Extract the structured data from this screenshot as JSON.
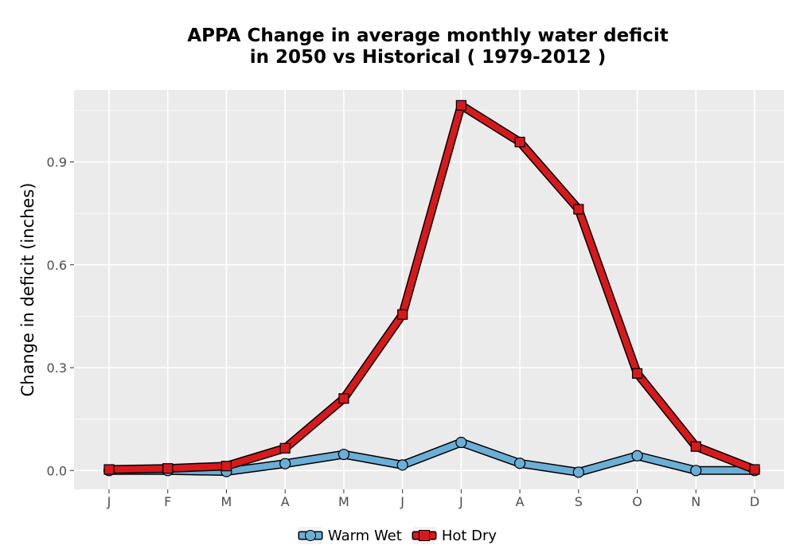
{
  "chart_data": {
    "type": "line",
    "title_lines": [
      "APPA  Change in average monthly water deficit",
      "in 2050 vs Historical ( 1979-2012 )"
    ],
    "xlabel": "",
    "ylabel": "Change in deficit (inches)",
    "categories": [
      "J",
      "F",
      "M",
      "A",
      "M",
      "J",
      "J",
      "A",
      "S",
      "O",
      "N",
      "D"
    ],
    "yticks": [
      0.0,
      0.3,
      0.6,
      0.9
    ],
    "ytick_labels": [
      "0.0",
      "0.3",
      "0.6",
      "0.9"
    ],
    "ylim": [
      -0.055,
      1.11
    ],
    "grid": true,
    "legend_position": "bottom",
    "series": [
      {
        "name": "Warm Wet",
        "marker": "circle",
        "color": "#6baed6",
        "values": [
          0.0,
          0.0,
          -0.003,
          0.02,
          0.047,
          0.016,
          0.082,
          0.021,
          -0.005,
          0.043,
          0.0,
          0.0
        ]
      },
      {
        "name": "Hot Dry",
        "marker": "square",
        "color": "#d7191c",
        "values": [
          0.003,
          0.006,
          0.013,
          0.065,
          0.21,
          0.455,
          1.065,
          0.958,
          0.762,
          0.283,
          0.07,
          0.003
        ]
      }
    ]
  }
}
